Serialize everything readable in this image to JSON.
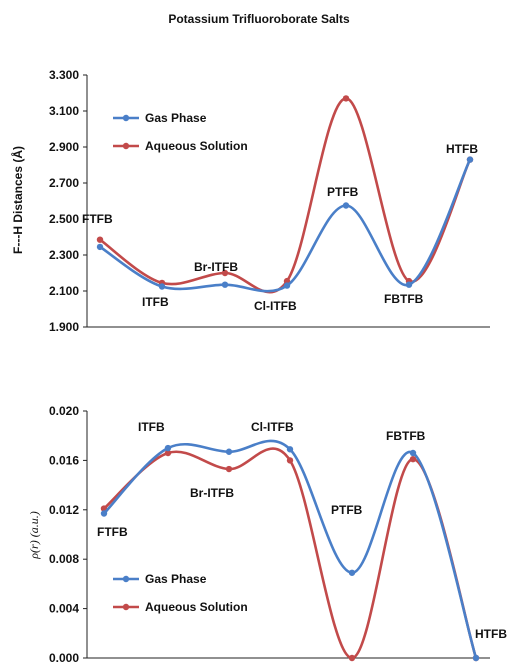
{
  "figure_title": "Potassium Trifluoroborate Salts",
  "colors": {
    "gas": "#4a7fc8",
    "aqueous": "#c24a4a"
  },
  "chart_data": [
    {
      "type": "line",
      "ylabel": "F---H Distances (Å)",
      "ylim": [
        1.9,
        3.3
      ],
      "yticks": [
        "1.900",
        "2.100",
        "2.300",
        "2.500",
        "2.700",
        "2.900",
        "3.100",
        "3.300"
      ],
      "categories": [
        "FTFB",
        "ITFB",
        "Br-ITFB",
        "Cl-ITFB",
        "PTFB",
        "FBTFB",
        "HTFB"
      ],
      "series": [
        {
          "name": "Gas Phase",
          "values": [
            2.345,
            2.125,
            2.135,
            2.13,
            2.575,
            2.135,
            2.83
          ]
        },
        {
          "name": "Aqueous Solution",
          "values": [
            2.385,
            2.145,
            2.2,
            2.155,
            3.17,
            2.155,
            2.83
          ]
        }
      ],
      "legend": "top-left",
      "point_labels": [
        "FTFB",
        "ITFB",
        "Br-ITFB",
        "Cl-ITFB",
        "PTFB",
        "FBTFB",
        "HTFB"
      ]
    },
    {
      "type": "line",
      "ylabel": "ρ(r) (a.u.)",
      "ylim": [
        0.0,
        0.02
      ],
      "yticks": [
        "0.000",
        "0.004",
        "0.008",
        "0.012",
        "0.016",
        "0.020"
      ],
      "categories": [
        "FTFB",
        "ITFB",
        "Br-ITFB",
        "Cl-ITFB",
        "PTFB",
        "FBTFB",
        "HTFB"
      ],
      "series": [
        {
          "name": "Gas Phase",
          "values": [
            0.0117,
            0.017,
            0.0167,
            0.0169,
            0.0069,
            0.0166,
            0.0
          ]
        },
        {
          "name": "Aqueous Solution",
          "values": [
            0.0121,
            0.0166,
            0.0153,
            0.016,
            0.0,
            0.0161,
            0.0
          ]
        }
      ],
      "legend": "bottom-left",
      "point_labels": [
        "FTFB",
        "ITFB",
        "Br-ITFB",
        "Cl-ITFB",
        "PTFB",
        "FBTFB",
        "HTFB"
      ]
    }
  ]
}
